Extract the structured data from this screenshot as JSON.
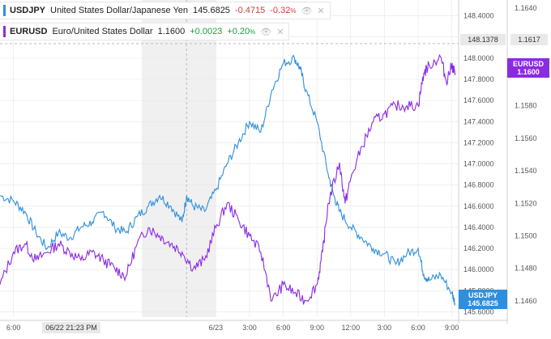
{
  "colors": {
    "usdjpy": "#2f8fdd",
    "eurusd": "#8a2be2",
    "session_shade": "#f0f0f0",
    "grid": "#e6e6e6",
    "crosshair": "#bbbbbb"
  },
  "legend": [
    {
      "symbol": "USDJPY",
      "name": "United States Dollar/Japanese Yen",
      "last": "145.6825",
      "change": "-0.4715",
      "pct": "-0.32",
      "pct_suffix": "%",
      "dir": "neg"
    },
    {
      "symbol": "EURUSD",
      "name": "Euro/United States Dollar",
      "last": "1.1600",
      "change": "+0.0023",
      "pct": "+0.20",
      "pct_suffix": "%",
      "dir": "pos"
    }
  ],
  "icons": {
    "hide": "eye-slash-icon",
    "close": "close-icon"
  },
  "crosshair": {
    "time_label": "06/22 21:23 PM",
    "usdjpy_label": "148.1378",
    "eurusd_label": "1.1617"
  },
  "price_labels": {
    "usdjpy": {
      "symbol": "USDJPY",
      "value": "145.6825"
    },
    "eurusd": {
      "symbol": "EURUSD",
      "value": "1.1600"
    }
  },
  "chart_data": {
    "type": "line",
    "x_ticks": [
      "6:00",
      "06/22 21:23 PM",
      "6/23",
      "3:00",
      "6:00",
      "9:00",
      "12:00",
      "3:00",
      "6:00",
      "9:00"
    ],
    "x_tick_hours": [
      -18,
      -2.6,
      0,
      3,
      6,
      9,
      12,
      15,
      18,
      21
    ],
    "x_range_hours": [
      -19.2,
      21.6
    ],
    "left_axis": {
      "series": "USDJPY",
      "ticks": [
        "148.4000",
        "148.2000",
        "148.0000",
        "147.8000",
        "147.6000",
        "147.4000",
        "147.2000",
        "147.0000",
        "146.8000",
        "146.6000",
        "146.4000",
        "146.2000",
        "146.0000",
        "145.8000",
        "145.6000"
      ],
      "ylim": [
        145.55,
        148.55
      ]
    },
    "right_axis": {
      "series": "EURUSD",
      "ticks": [
        "1.1640",
        "1.1620",
        "1.1600",
        "1.1580",
        "1.1560",
        "1.1540",
        "1.1520",
        "1.1500",
        "1.1480",
        "1.1460"
      ],
      "ylim": [
        1.145,
        1.1645
      ]
    },
    "series": [
      {
        "name": "USDJPY",
        "axis": "left",
        "x": [
          -19.2,
          -18,
          -17,
          -16,
          -15,
          -14,
          -13,
          -12,
          -11,
          -10,
          -9,
          -8,
          -7,
          -6,
          -5,
          -4,
          -3,
          -2.6,
          -2,
          -1,
          0,
          1,
          2,
          3,
          4,
          5,
          6,
          7,
          7.5,
          8,
          9,
          10,
          10.5,
          11,
          12,
          13,
          14,
          15,
          16,
          17,
          18,
          18.5,
          19,
          20,
          21,
          21.3
        ],
        "y": [
          146.7,
          146.65,
          146.55,
          146.35,
          146.2,
          146.35,
          146.3,
          146.4,
          146.45,
          146.55,
          146.4,
          146.35,
          146.5,
          146.6,
          146.7,
          146.6,
          146.45,
          146.7,
          146.6,
          146.55,
          146.75,
          147.0,
          147.2,
          147.4,
          147.3,
          147.7,
          147.95,
          148.0,
          147.9,
          147.7,
          147.4,
          146.9,
          146.7,
          146.55,
          146.4,
          146.3,
          146.2,
          146.15,
          146.05,
          146.15,
          146.2,
          145.95,
          145.9,
          145.95,
          145.78,
          145.68
        ]
      },
      {
        "name": "EURUSD",
        "axis": "right",
        "x": [
          -19.2,
          -18,
          -17,
          -16,
          -15,
          -14,
          -13,
          -12,
          -11,
          -10,
          -9,
          -8,
          -7,
          -6,
          -5,
          -4,
          -3,
          -2,
          -1,
          0,
          1,
          2,
          3,
          4,
          5,
          6,
          7,
          8,
          9,
          9.5,
          10,
          11,
          11.5,
          12,
          13,
          14,
          15,
          16,
          17,
          18,
          18.5,
          19,
          20,
          20.5,
          21,
          21.3
        ],
        "y": [
          1.147,
          1.149,
          1.1495,
          1.1485,
          1.149,
          1.1495,
          1.149,
          1.1485,
          1.149,
          1.1485,
          1.148,
          1.1475,
          1.1495,
          1.1505,
          1.15,
          1.1495,
          1.149,
          1.148,
          1.1485,
          1.1505,
          1.152,
          1.151,
          1.15,
          1.149,
          1.146,
          1.147,
          1.1465,
          1.146,
          1.147,
          1.149,
          1.152,
          1.1545,
          1.152,
          1.1535,
          1.1555,
          1.157,
          1.1575,
          1.158,
          1.158,
          1.158,
          1.16,
          1.1605,
          1.161,
          1.1595,
          1.1605,
          1.16
        ]
      }
    ]
  }
}
